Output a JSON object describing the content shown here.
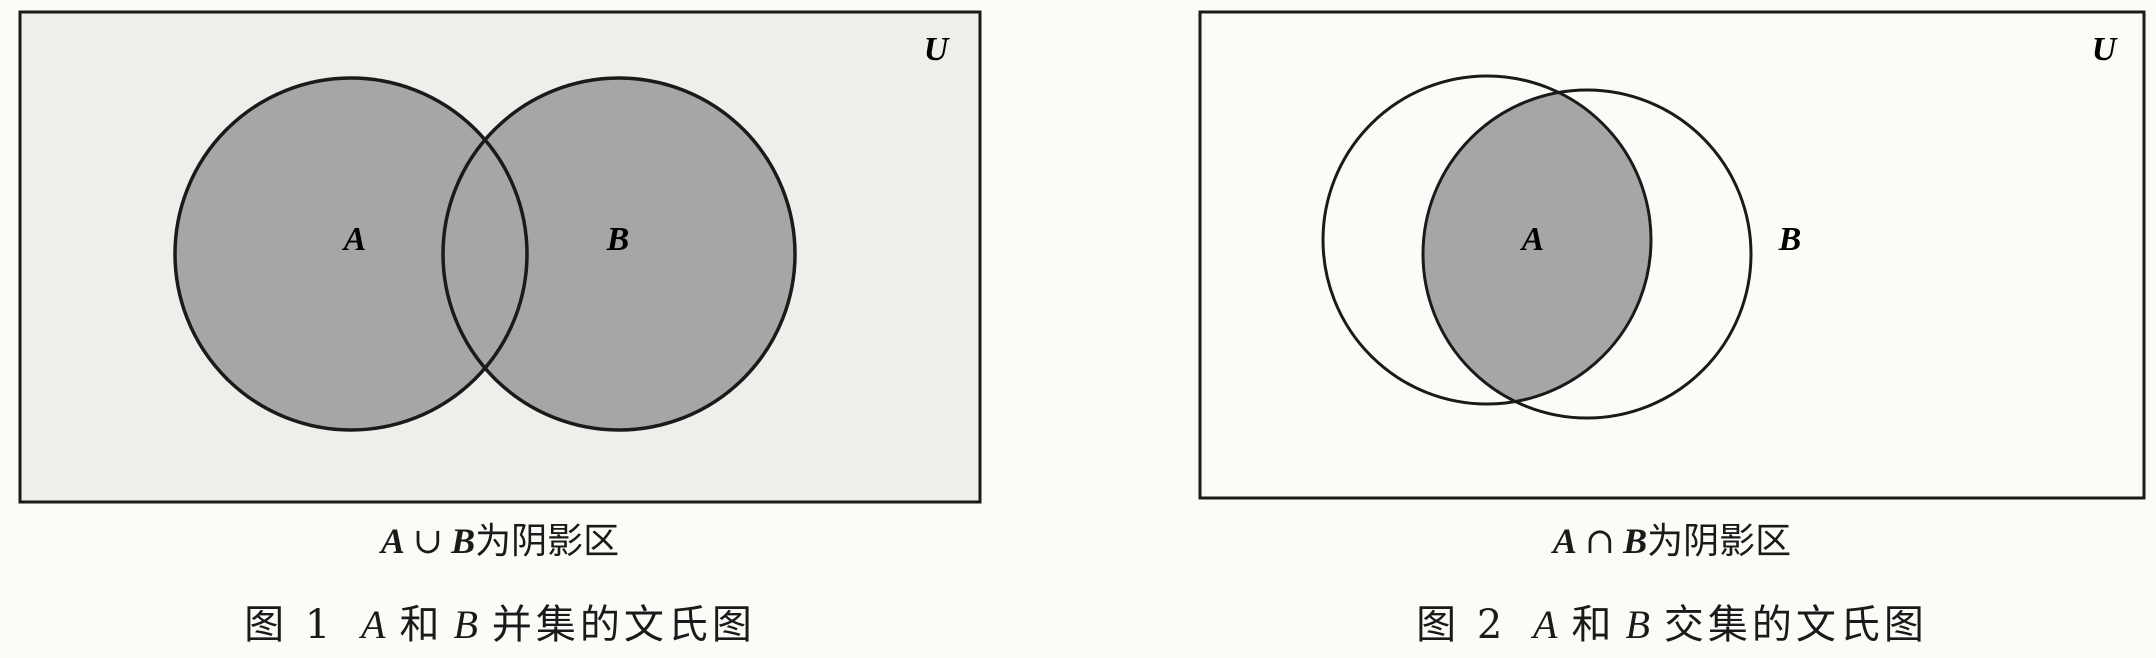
{
  "figure1": {
    "universe_label": "U",
    "set_a_label": "A",
    "set_b_label": "B",
    "caption_a": "A",
    "caption_op": "∪",
    "caption_b": "B",
    "caption_tail": "为阴影区",
    "title_prefix": "图 1",
    "title_a": "A",
    "title_mid": "和",
    "title_b": "B",
    "title_suffix": "并集的文氏图",
    "shaded_region": "union",
    "shade_color": "#a6a6a6",
    "background_color": "#eeeeea"
  },
  "figure2": {
    "universe_label": "U",
    "set_a_label": "A",
    "set_b_label": "B",
    "caption_a": "A",
    "caption_op": "∩",
    "caption_b": "B",
    "caption_tail": "为阴影区",
    "title_prefix": "图 2",
    "title_a": "A",
    "title_mid": "和",
    "title_b": "B",
    "title_suffix": "交集的文氏图",
    "shaded_region": "intersection",
    "shade_color": "#a6a6a6",
    "background_color": "#fbfbf8"
  }
}
